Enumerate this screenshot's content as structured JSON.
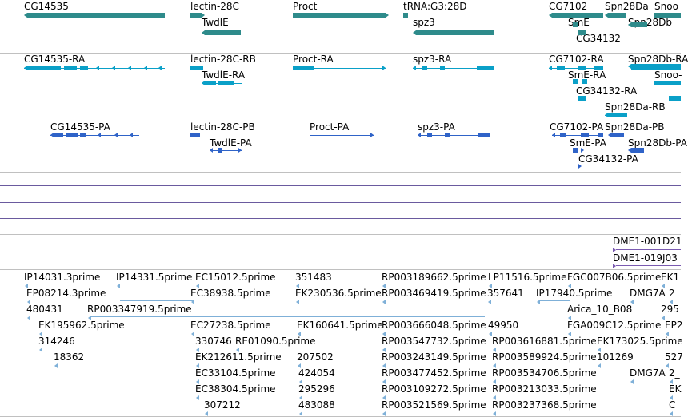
{
  "colors": {
    "gene": "#2e8b8b",
    "transcript": "#0aa0c8",
    "protein": "#2f63c8",
    "hit": "#7a5ab0",
    "est": "#7fb0d8",
    "separator": "#c0c0c0",
    "hline": "#6a5a9e"
  },
  "tracks": {
    "genes": [
      "CG14535",
      "lectin-28C",
      "TwdlE",
      "Proct",
      "tRNA:G3:28D",
      "spz3",
      "CG7102",
      "SmE",
      "CG34132",
      "Spn28Da",
      "Spn28Db",
      "Snoo"
    ],
    "transcripts": [
      "CG14535-RA",
      "lectin-28C-RB",
      "TwdlE-RA",
      "Proct-RA",
      "spz3-RA",
      "CG7102-RA",
      "SmE-RA",
      "CG34132-RA",
      "Spn28Da-RB",
      "Spn28Db-RA",
      "Snoo-"
    ],
    "proteins": [
      "CG14535-PA",
      "lectin-28C-PB",
      "TwdlE-PA",
      "Proct-PA",
      "spz3-PA",
      "CG7102-PA",
      "Spn28Da-PB",
      "SmE-PA",
      "Spn28Db-PA",
      "CG34132-PA"
    ],
    "hits": [
      "DME1-001D21",
      "DME1-019J03"
    ],
    "ests": [
      "IP14031.3prime",
      "IP14331.5prime",
      "EC15012.5prime",
      "351483",
      "RP003189662.5prime",
      "LP11516.5prime",
      "FGC007B06.5prime",
      "EK1",
      "EP08214.3prime",
      "EC38938.5prime",
      "EK230536.5prime",
      "RP003469419.5prime",
      "357641",
      "IP17940.5prime",
      "DMG7A",
      "2",
      "480431",
      "RP003347919.5prime",
      "Arica_10_B08",
      "295",
      "EK195962.5prime",
      "EC27238.5prime",
      "EK160641.5prime",
      "RP003666048.5prime",
      "49950",
      "FGA009C12.5prime",
      "EP2",
      "314246",
      "330746",
      "RE01090.5prime",
      "RP003547732.5prime",
      "RP003616881.5prime",
      "EK173025.5prime",
      "18362",
      "EK212611.5prime",
      "207502",
      "RP003243149.5prime",
      "RP003589924.5prime",
      "101269",
      "527",
      "EC33104.5prime",
      "424054",
      "RP003477452.5prime",
      "RP003534706.5prime",
      "DMG7A",
      "2_",
      "EC38304.5prime",
      "295296",
      "RP003109272.5prime",
      "RP003213033.5prime",
      "EK",
      "307212",
      "483088",
      "RP003521569.5prime",
      "RP003237368.5prime",
      "C"
    ]
  }
}
